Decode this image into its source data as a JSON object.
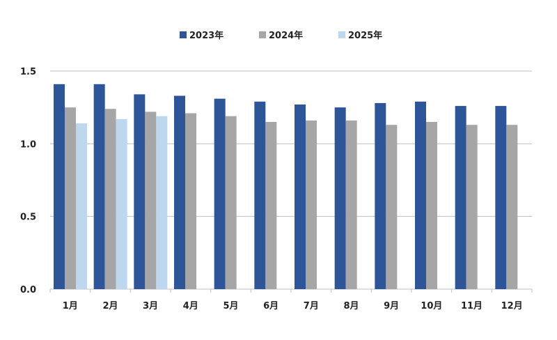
{
  "chart_data": {
    "type": "bar",
    "categories": [
      "1月",
      "2月",
      "3月",
      "4月",
      "5月",
      "6月",
      "7月",
      "8月",
      "9月",
      "10月",
      "11月",
      "12月"
    ],
    "series": [
      {
        "name": "2023年",
        "color": "#2e5597",
        "values": [
          1.41,
          1.41,
          1.34,
          1.33,
          1.31,
          1.29,
          1.27,
          1.25,
          1.28,
          1.29,
          1.26,
          1.26
        ]
      },
      {
        "name": "2024年",
        "color": "#a6a6a6",
        "values": [
          1.25,
          1.24,
          1.22,
          1.21,
          1.19,
          1.15,
          1.16,
          1.16,
          1.13,
          1.15,
          1.13,
          1.13
        ]
      },
      {
        "name": "2025年",
        "color": "#bdd7ee",
        "values": [
          1.14,
          1.17,
          1.19,
          null,
          null,
          null,
          null,
          null,
          null,
          null,
          null,
          null
        ]
      }
    ],
    "y_ticks": [
      "0.0",
      "0.5",
      "1.0",
      "1.5"
    ],
    "ylim": [
      0,
      1.5
    ],
    "grid": true,
    "legend_position": "top-center"
  }
}
